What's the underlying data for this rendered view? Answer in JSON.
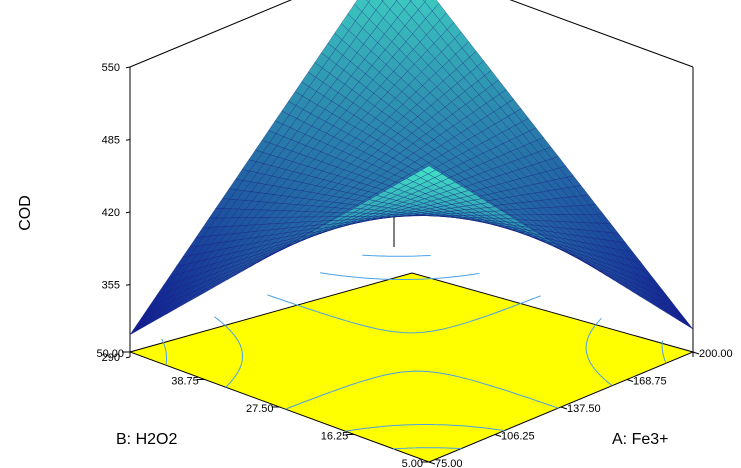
{
  "chart_data": {
    "type": "surface3d",
    "zlabel": "COD",
    "xlabel": "A: Fe3+",
    "ylabel": "B: H2O2",
    "x_ticks": [
      "75.00",
      "106.25",
      "137.50",
      "168.75",
      "200.00"
    ],
    "y_ticks": [
      "5.00",
      "16.25",
      "27.50",
      "38.75",
      "50.00"
    ],
    "z_ticks": [
      "290",
      "355",
      "420",
      "485",
      "550"
    ],
    "x_range": [
      75,
      200
    ],
    "y_range": [
      5,
      50
    ],
    "z_range": [
      290,
      550
    ],
    "corners": [
      {
        "x": 75,
        "y": 5,
        "z": 560
      },
      {
        "x": 200,
        "y": 5,
        "z": 315
      },
      {
        "x": 75,
        "y": 50,
        "z": 310
      },
      {
        "x": 200,
        "y": 50,
        "z": 560
      }
    ],
    "floor_color": "#ffff00",
    "surface_low_color": "#0a0a8c",
    "surface_high_color": "#44e6c8",
    "contour_color": "#4aa0e6"
  }
}
